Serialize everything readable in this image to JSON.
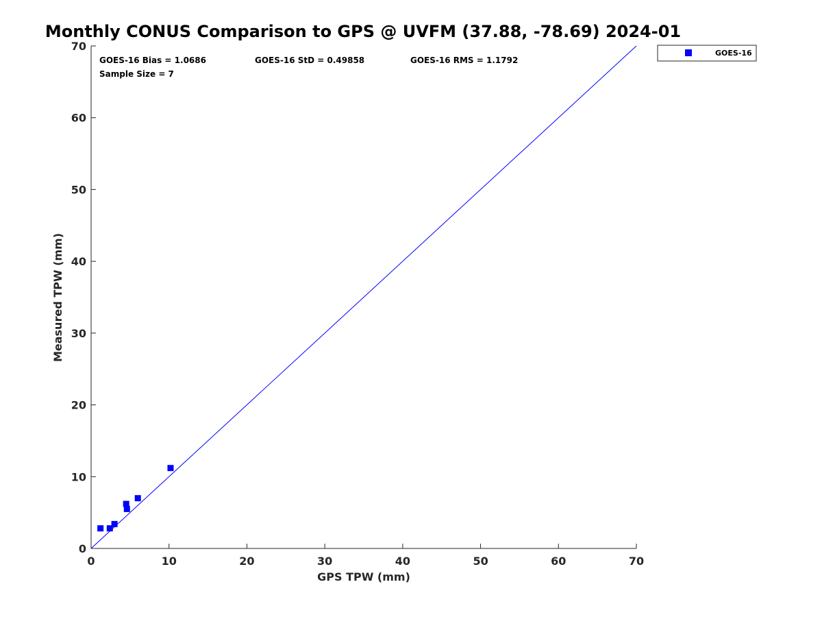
{
  "chart_data": {
    "type": "scatter",
    "title": "Monthly CONUS Comparison to GPS @ UVFM (37.88, -78.69) 2024-01",
    "xlabel": "GPS TPW (mm)",
    "ylabel": "Measured TPW (mm)",
    "xlim": [
      0,
      70
    ],
    "ylim": [
      0,
      70
    ],
    "xticks": [
      0,
      10,
      20,
      30,
      40,
      50,
      60,
      70
    ],
    "yticks": [
      0,
      10,
      20,
      30,
      40,
      50,
      60,
      70
    ],
    "reference_line": {
      "from": [
        0,
        0
      ],
      "to": [
        70,
        70
      ],
      "color": "#0000ff"
    },
    "series": [
      {
        "name": "GOES-16",
        "color": "#0000ff",
        "marker": "square",
        "x": [
          1.2,
          2.4,
          3.0,
          4.5,
          4.6,
          6.0,
          10.2
        ],
        "y": [
          2.8,
          2.8,
          3.4,
          6.2,
          5.5,
          7.0,
          11.2
        ]
      }
    ],
    "stats": {
      "bias": "GOES-16 Bias = 1.0686",
      "std": "GOES-16 StD = 0.49858",
      "rms": "GOES-16 RMS = 1.1792",
      "sample_size": "Sample Size = 7"
    },
    "legend": {
      "position": "top-right-outside",
      "entries": [
        "GOES-16"
      ]
    }
  }
}
